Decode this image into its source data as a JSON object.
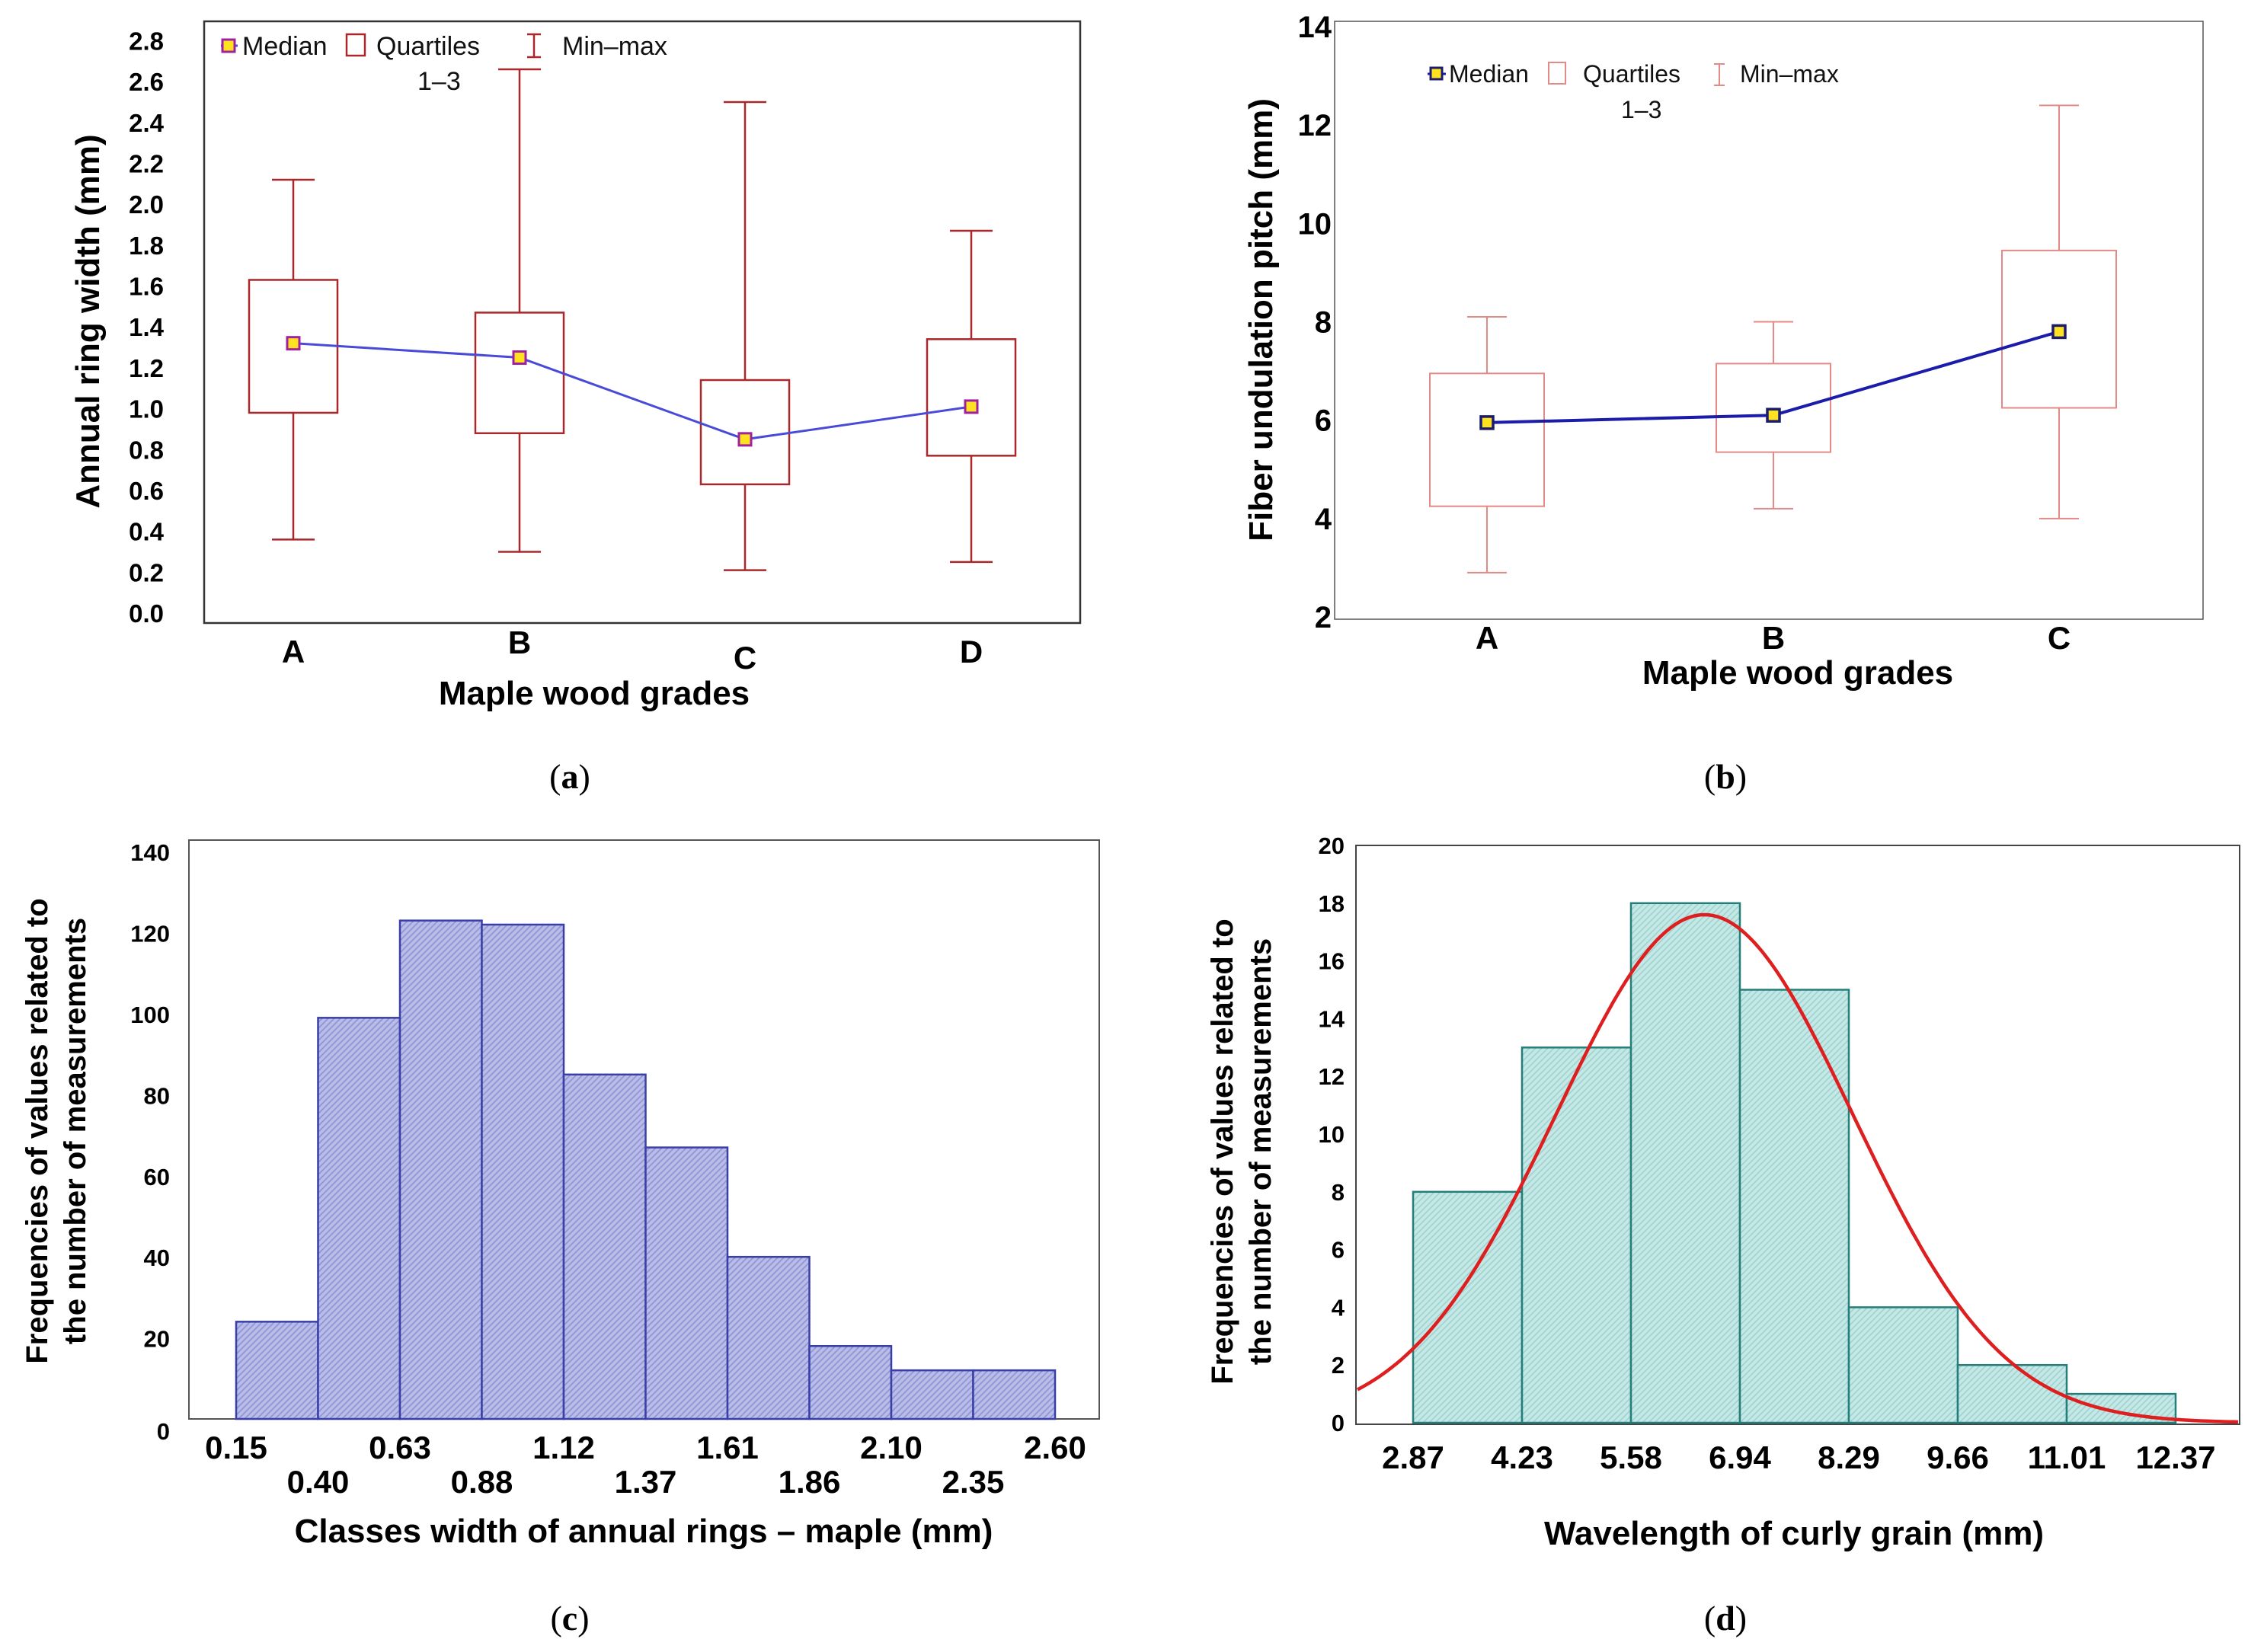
{
  "chart_data": [
    {
      "id": "a",
      "type": "box",
      "caption": "(a)",
      "caption_letter": "a",
      "xlabel": "Maple wood grades",
      "ylabel": "Annual ring width (mm)",
      "categories": [
        "A",
        "B",
        "C",
        "D"
      ],
      "yticks": [
        "0.0",
        "0.2",
        "0.4",
        "0.6",
        "0.8",
        "1.0",
        "1.2",
        "1.4",
        "1.6",
        "1.8",
        "2.0",
        "2.2",
        "2.4",
        "2.6",
        "2.8"
      ],
      "ylim": [
        0.0,
        2.85
      ],
      "legend": {
        "median": "Median",
        "quartiles": "Quartiles",
        "quartiles_sub": "1–3",
        "minmax": "Min–max"
      },
      "boxes": [
        {
          "grade": "A",
          "min": 0.36,
          "q1": 0.98,
          "median": 1.32,
          "q3": 1.63,
          "max": 2.12
        },
        {
          "grade": "B",
          "min": 0.3,
          "q1": 0.88,
          "median": 1.25,
          "q3": 1.47,
          "max": 2.66
        },
        {
          "grade": "C",
          "min": 0.21,
          "q1": 0.63,
          "median": 0.85,
          "q3": 1.14,
          "max": 2.5
        },
        {
          "grade": "D",
          "min": 0.25,
          "q1": 0.77,
          "median": 1.01,
          "q3": 1.34,
          "max": 1.87
        }
      ],
      "colors": {
        "box": "#a8282b",
        "median_line": "#4a4ad8",
        "marker_fill": "#ffe21f",
        "marker_edge": "#a020a0"
      }
    },
    {
      "id": "b",
      "type": "box",
      "caption": "(b)",
      "caption_letter": "b",
      "xlabel": "Maple wood grades",
      "ylabel": "Fiber undulation pitch (mm)",
      "categories": [
        "A",
        "B",
        "C"
      ],
      "yticks": [
        "2",
        "4",
        "6",
        "8",
        "10",
        "12",
        "14"
      ],
      "ylim": [
        2.0,
        14.0
      ],
      "legend": {
        "median": "Median",
        "quartiles": "Quartiles",
        "quartiles_sub": "1–3",
        "minmax": "Min–max"
      },
      "boxes": [
        {
          "grade": "A",
          "min": 2.9,
          "q1": 4.25,
          "median": 5.95,
          "q3": 6.95,
          "max": 8.1
        },
        {
          "grade": "B",
          "min": 4.2,
          "q1": 5.35,
          "median": 6.1,
          "q3": 7.15,
          "max": 8.0
        },
        {
          "grade": "C",
          "min": 4.0,
          "q1": 6.25,
          "median": 7.8,
          "q3": 9.45,
          "max": 12.4
        }
      ],
      "colors": {
        "box": "#e38a86",
        "median_line": "#1c1cab",
        "marker_fill": "#ffe21f",
        "marker_edge": "#1c1c6b"
      }
    },
    {
      "id": "c",
      "type": "bar",
      "caption": "(c)",
      "caption_letter": "c",
      "xlabel": "Classes width of annual rings – maple (mm)",
      "ylabel_line1": "Frequencies of values related to",
      "ylabel_line2": "the number of measurements",
      "bin_edges": [
        0.15,
        0.4,
        0.63,
        0.88,
        1.12,
        1.37,
        1.61,
        1.86,
        2.1,
        2.35,
        2.6
      ],
      "xtick_labels_upper": [
        "0.15",
        "0.63",
        "1.12",
        "1.61",
        "2.10",
        "2.60"
      ],
      "xtick_labels_lower": [
        "0.40",
        "0.88",
        "1.37",
        "1.86",
        "2.35"
      ],
      "values": [
        24,
        99,
        123,
        122,
        85,
        67,
        40,
        18,
        12,
        12
      ],
      "yticks": [
        "0",
        "20",
        "40",
        "60",
        "80",
        "100",
        "120",
        "140"
      ],
      "ylim": [
        0,
        140
      ],
      "colors": {
        "fill": "#b9bce6",
        "hatch": "#8d92d6",
        "edge": "#3a3fa8"
      }
    },
    {
      "id": "d",
      "type": "bar",
      "caption": "(d)",
      "caption_letter": "d",
      "xlabel": "Wavelength of curly grain (mm)",
      "ylabel_line1": "Frequencies of values related to",
      "ylabel_line2": "the number of measurements",
      "bin_edges": [
        2.87,
        4.23,
        5.58,
        6.94,
        8.29,
        9.66,
        11.01,
        12.37
      ],
      "xtick_labels": [
        "2.87",
        "4.23",
        "5.58",
        "6.94",
        "8.29",
        "9.66",
        "11.01",
        "12.37"
      ],
      "values": [
        8,
        13,
        18,
        15,
        4,
        2,
        1
      ],
      "yticks": [
        "0",
        "2",
        "4",
        "6",
        "8",
        "10",
        "12",
        "14",
        "16",
        "18",
        "20"
      ],
      "ylim": [
        0,
        20
      ],
      "normal_curve": {
        "mean": 6.5,
        "sd": 1.85,
        "peak": 17.6
      },
      "colors": {
        "fill": "#c4e8e6",
        "hatch": "#9fd2cf",
        "edge": "#247f7a",
        "curve": "#dd1f1f"
      }
    }
  ]
}
